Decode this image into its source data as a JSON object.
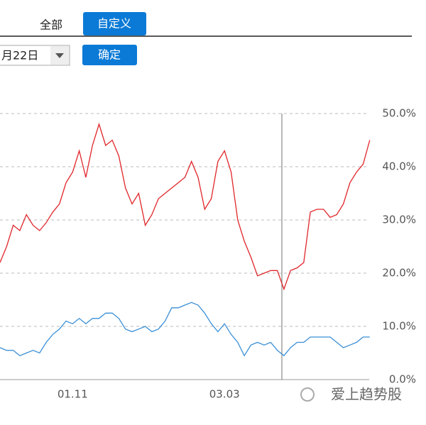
{
  "ui": {
    "tab_all": "全部",
    "tab_custom": "自定义",
    "date": "月22日",
    "confirm": "确定",
    "watermark": "爱上趋势股"
  },
  "chart_data": {
    "type": "line",
    "categories": [
      null,
      null,
      null,
      null,
      null,
      null,
      null,
      null,
      null,
      null,
      null,
      "01.11",
      null,
      null,
      null,
      null,
      null,
      null,
      null,
      null,
      null,
      null,
      null,
      null,
      null,
      null,
      null,
      null,
      null,
      null,
      null,
      null,
      null,
      null,
      "03.03",
      null,
      null,
      null,
      null,
      null,
      null,
      null,
      null,
      null,
      null,
      null,
      null,
      null,
      null,
      null,
      null,
      null,
      null,
      null,
      null,
      null,
      null
    ],
    "series": [
      {
        "color": "#e0262a",
        "values": [
          22,
          25,
          29,
          28,
          31,
          29,
          28,
          29.5,
          31.5,
          33,
          37,
          39,
          43,
          38,
          44,
          48,
          44,
          45,
          42,
          36,
          33,
          35,
          29,
          31,
          34,
          35,
          36,
          37,
          38,
          41,
          38,
          32,
          34,
          41,
          43,
          39,
          30,
          26,
          23,
          19.5,
          20,
          20.5,
          20.5,
          17,
          20.5,
          21,
          22,
          31.5,
          32,
          32,
          30.5,
          31,
          33,
          37,
          39,
          40.5,
          45
        ]
      },
      {
        "color": "#3a8fd6",
        "values": [
          6,
          5.5,
          5.5,
          4.5,
          5,
          5.5,
          5,
          7,
          8.5,
          9.5,
          11,
          10.5,
          11.5,
          10.5,
          11.5,
          11.5,
          12.5,
          12.5,
          11.5,
          9.5,
          9,
          9.5,
          10,
          9,
          9.5,
          11,
          13.5,
          13.5,
          14,
          14.5,
          14,
          12.5,
          10.5,
          9,
          10.5,
          8.5,
          7,
          4.5,
          6.5,
          7,
          6.5,
          7,
          5.5,
          4.5,
          6,
          7,
          7,
          8,
          8,
          8,
          8,
          7,
          6,
          6.5,
          7,
          8,
          8
        ]
      }
    ],
    "ylim": [
      0,
      50
    ],
    "yticks": [
      {
        "value": 0,
        "label": "0.0%"
      },
      {
        "value": 10,
        "label": "10.0%"
      },
      {
        "value": 20,
        "label": "20.0%"
      },
      {
        "value": 30,
        "label": "30.0%"
      },
      {
        "value": 40,
        "label": "40.0%"
      },
      {
        "value": 50,
        "label": "50.0%"
      }
    ],
    "grid": true
  }
}
